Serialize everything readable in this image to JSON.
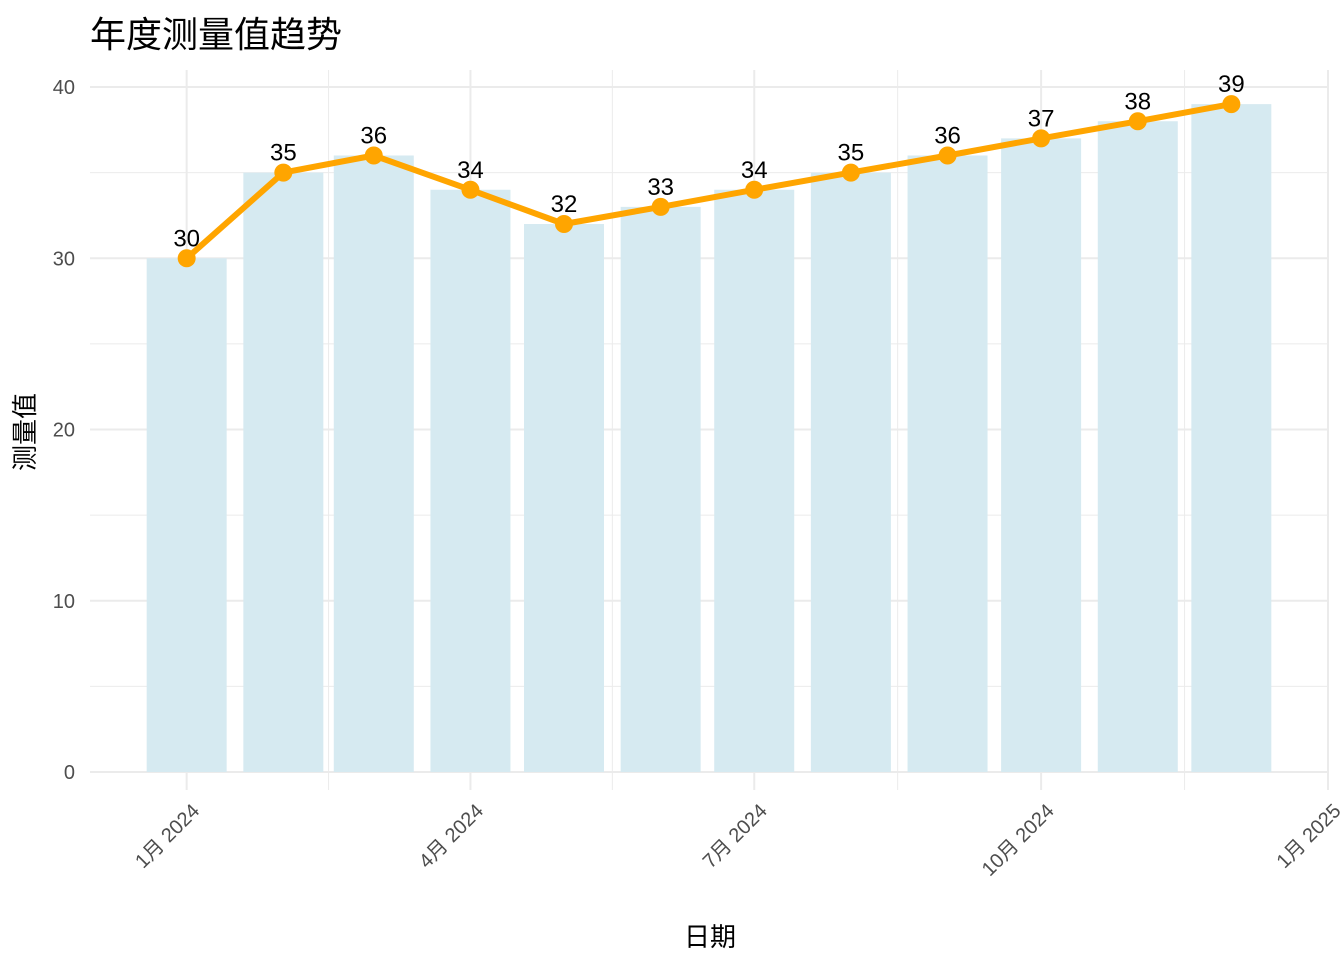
{
  "chart_data": {
    "type": "bar",
    "title": "年度测量值趋势",
    "xlabel": "日期",
    "ylabel": "测量值",
    "x_axis_type": "date",
    "x_ticks": [
      "1月 2024",
      "4月 2024",
      "7月 2024",
      "10月 2024",
      "1月 2025"
    ],
    "y_ticks": [
      "0",
      "10",
      "20",
      "30",
      "40"
    ],
    "ylim": [
      0,
      40
    ],
    "xlim": [
      "2023-12-01",
      "2025-01-01"
    ],
    "grid": true,
    "x": [
      "2024-01-01",
      "2024-02-01",
      "2024-03-01",
      "2024-04-01",
      "2024-05-01",
      "2024-06-01",
      "2024-07-01",
      "2024-08-01",
      "2024-09-01",
      "2024-10-01",
      "2024-11-01",
      "2024-12-01"
    ],
    "series": [
      {
        "type": "bar",
        "values": [
          30,
          35,
          36,
          34,
          32,
          33,
          34,
          35,
          36,
          37,
          38,
          39
        ]
      },
      {
        "type": "line",
        "values": [
          30,
          35,
          36,
          34,
          32,
          33,
          34,
          35,
          36,
          37,
          38,
          39
        ]
      }
    ],
    "data_labels": [
      "30",
      "35",
      "36",
      "34",
      "32",
      "33",
      "34",
      "35",
      "36",
      "37",
      "38",
      "39"
    ],
    "colors": {
      "bar": "#d6eaf1",
      "line": "#ffa500",
      "grid": "#ebebeb"
    }
  }
}
